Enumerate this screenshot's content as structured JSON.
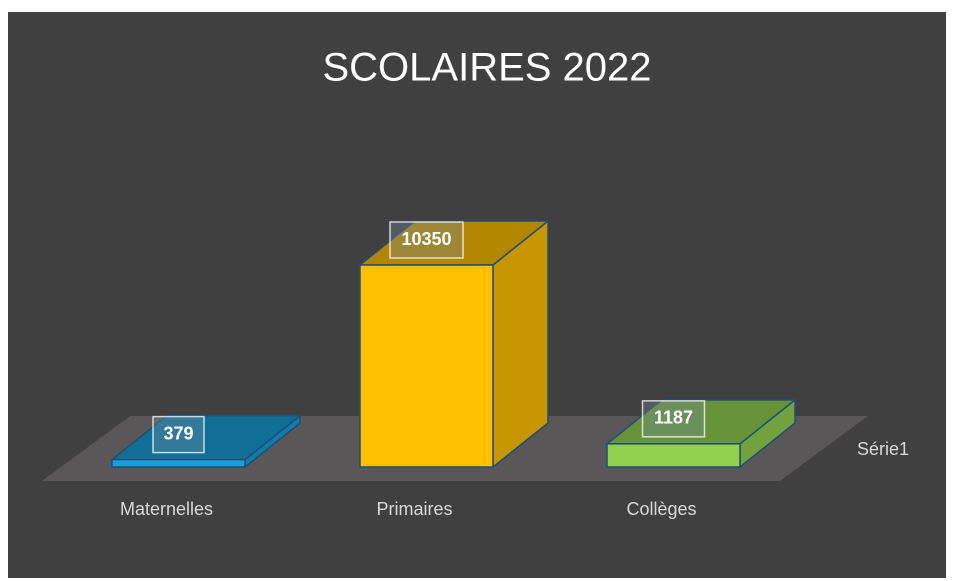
{
  "chart_data": {
    "type": "bar3d",
    "title": "SCOLAIRES 2022",
    "categories": [
      "Maternelles",
      "Primaires",
      "Collèges"
    ],
    "series": [
      {
        "name": "Série1",
        "values": [
          379,
          10350,
          1187
        ],
        "colors": [
          "#169fd8",
          "#ffc000",
          "#92d050"
        ]
      }
    ]
  }
}
